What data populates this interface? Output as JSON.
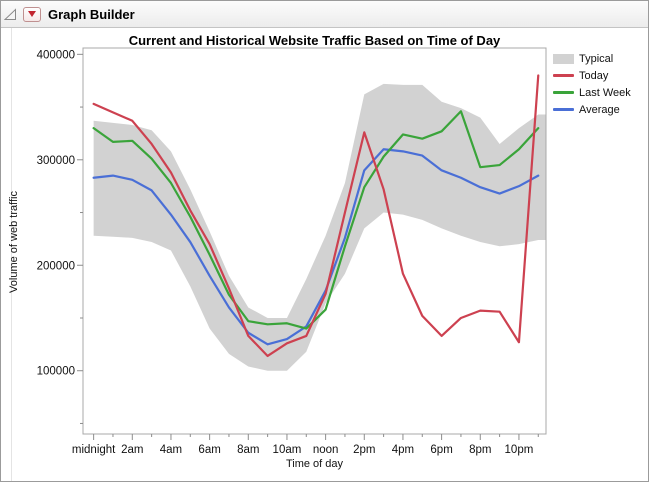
{
  "window": {
    "title": "Graph Builder",
    "disclosure_icon": "outline-open-triangle",
    "menu_icon": "red-triangle-menu"
  },
  "chart_data": {
    "type": "line",
    "title": "Current and Historical Website Traffic Based on Time of Day",
    "xlabel": "Time of day",
    "ylabel": "Volume of web traffic",
    "grid": false,
    "legend_position": "right",
    "x_hours": [
      0,
      1,
      2,
      3,
      4,
      5,
      6,
      7,
      8,
      9,
      10,
      11,
      12,
      13,
      14,
      15,
      16,
      17,
      18,
      19,
      20,
      21,
      22,
      23
    ],
    "x_tick_labels": [
      {
        "h": 0,
        "label": "midnight"
      },
      {
        "h": 2,
        "label": "2am"
      },
      {
        "h": 4,
        "label": "4am"
      },
      {
        "h": 6,
        "label": "6am"
      },
      {
        "h": 8,
        "label": "8am"
      },
      {
        "h": 10,
        "label": "10am"
      },
      {
        "h": 12,
        "label": "noon"
      },
      {
        "h": 14,
        "label": "2pm"
      },
      {
        "h": 16,
        "label": "4pm"
      },
      {
        "h": 18,
        "label": "6pm"
      },
      {
        "h": 20,
        "label": "8pm"
      },
      {
        "h": 22,
        "label": "10pm"
      }
    ],
    "y_ticks_major": [
      100000,
      200000,
      300000,
      400000
    ],
    "y_ticks_minor": [
      50000,
      150000,
      250000,
      350000
    ],
    "ylim": [
      40000,
      406000
    ],
    "xlim": [
      -0.55,
      23.4
    ],
    "band": {
      "name": "Typical",
      "color": "#d2d2d2",
      "low": [
        228000,
        227000,
        226000,
        222000,
        214000,
        180000,
        140000,
        116000,
        104000,
        100000,
        100000,
        118000,
        164000,
        192000,
        235000,
        250000,
        248000,
        243000,
        235000,
        228000,
        222000,
        218000,
        220000,
        224000
      ],
      "high": [
        337000,
        335000,
        333000,
        328000,
        308000,
        272000,
        232000,
        190000,
        160000,
        150000,
        150000,
        187000,
        228000,
        278000,
        362000,
        372000,
        371000,
        371000,
        355000,
        349000,
        340000,
        315000,
        330000,
        343000
      ]
    },
    "series": [
      {
        "name": "Today",
        "color": "#cd4150",
        "values": [
          353000,
          345000,
          337000,
          315000,
          288000,
          252000,
          220000,
          178000,
          133000,
          114000,
          126000,
          133000,
          173000,
          250000,
          326000,
          272000,
          192000,
          152000,
          133000,
          150000,
          157000,
          156000,
          127000,
          380000
        ]
      },
      {
        "name": "Last Week",
        "color": "#3aa43a",
        "values": [
          330000,
          317000,
          318000,
          301000,
          278000,
          246000,
          210000,
          172000,
          147000,
          144000,
          145000,
          140000,
          158000,
          218000,
          274000,
          303000,
          324000,
          320000,
          327000,
          346000,
          293000,
          295000,
          310000,
          330000
        ]
      },
      {
        "name": "Average",
        "color": "#4a6fd6",
        "values": [
          283000,
          285000,
          281000,
          271000,
          248000,
          222000,
          190000,
          160000,
          136000,
          125000,
          130000,
          142000,
          176000,
          226000,
          290000,
          310000,
          308000,
          304000,
          290000,
          283000,
          274000,
          268000,
          275000,
          285000
        ]
      }
    ]
  },
  "legend": {
    "items": [
      {
        "label": "Typical",
        "swatch": "band"
      },
      {
        "label": "Today",
        "swatch": "line"
      },
      {
        "label": "Last Week",
        "swatch": "line"
      },
      {
        "label": "Average",
        "swatch": "line"
      }
    ]
  }
}
